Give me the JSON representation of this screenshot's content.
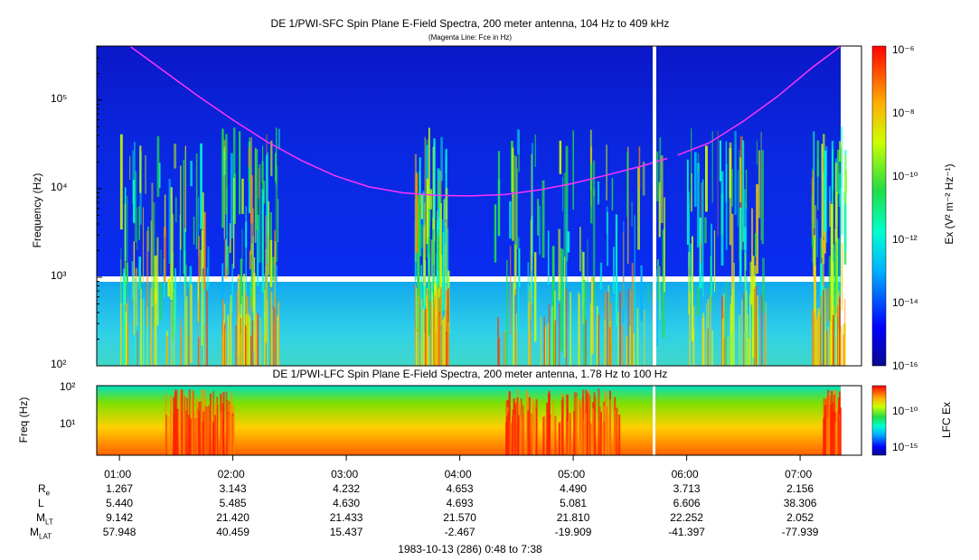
{
  "chart_data": [
    {
      "type": "heatmap",
      "title": "DE 1/PWI-SFC  Spin Plane E-Field Spectra, 200 meter antenna, 104 Hz to 409 kHz",
      "subtitle": "(Magenta Line: Fce in Hz)",
      "ylabel": "Frequency (Hz)",
      "yscale": "log",
      "ylim": [
        100,
        409000
      ],
      "ytick_labels": [
        "10²",
        "10³",
        "10⁴",
        "10⁵"
      ],
      "colorbar_label": "Ex (V² m⁻² Hz⁻¹)",
      "colorbar_scale": "log",
      "colorbar_range": [
        1e-16,
        1e-06
      ],
      "colorbar_tick_labels": [
        "10⁻⁶",
        "10⁻⁸",
        "10⁻¹⁰",
        "10⁻¹²",
        "10⁻¹⁴",
        "10⁻¹⁶"
      ],
      "overlay_line": {
        "name": "Fce",
        "color": "#ff33ff",
        "x_hours": [
          1.1,
          1.4,
          1.7,
          2.0,
          2.3,
          2.6,
          2.9,
          3.2,
          3.5,
          3.8,
          4.1,
          4.4,
          4.7,
          5.0,
          5.3,
          5.6,
          5.83,
          5.92,
          6.2,
          6.5,
          6.8,
          7.1,
          7.35
        ],
        "y_hz": [
          400000,
          210000,
          110000,
          60000,
          34000,
          21000,
          14000,
          10500,
          9000,
          8400,
          8300,
          8600,
          9700,
          11500,
          14300,
          18000,
          22000,
          24000,
          33000,
          58000,
          110000,
          230000,
          400000
        ]
      }
    },
    {
      "type": "heatmap",
      "title": "DE 1/PWI-LFC  Spin Plane E-Field Spectra, 200 meter antenna, 1.78 Hz to 100 Hz",
      "ylabel": "Freq (Hz)",
      "yscale": "log",
      "ylim": [
        1.78,
        100
      ],
      "ytick_labels": [
        "10¹",
        "10²"
      ],
      "colorbar_label": "LFC Ex",
      "colorbar_scale": "log",
      "colorbar_tick_labels": [
        "10⁻¹⁰",
        "10⁻¹⁵"
      ]
    }
  ],
  "time_axis": {
    "range_hours": [
      0.8,
      7.633
    ],
    "ticks": [
      "01:00",
      "02:00",
      "03:00",
      "04:00",
      "05:00",
      "06:00",
      "07:00"
    ],
    "footer": "1983-10-13 (286) 0:48 to 7:38"
  },
  "ephemeris": {
    "rows": [
      {
        "label": "R",
        "sub": "e",
        "values": [
          "1.267",
          "3.143",
          "4.232",
          "4.653",
          "4.490",
          "3.713",
          "2.156"
        ]
      },
      {
        "label": "L",
        "sub": "",
        "values": [
          "5.440",
          "5.485",
          "4.630",
          "4.693",
          "5.081",
          "6.606",
          "38.306"
        ]
      },
      {
        "label": "M",
        "sub": "LT",
        "values": [
          "9.142",
          "21.420",
          "21.433",
          "21.570",
          "21.810",
          "22.252",
          "2.052"
        ]
      },
      {
        "label": "M",
        "sub": "LAT",
        "values": [
          "57.948",
          "40.459",
          "15.437",
          "-2.467",
          "-19.909",
          "-41.397",
          "-77.939"
        ]
      }
    ]
  }
}
